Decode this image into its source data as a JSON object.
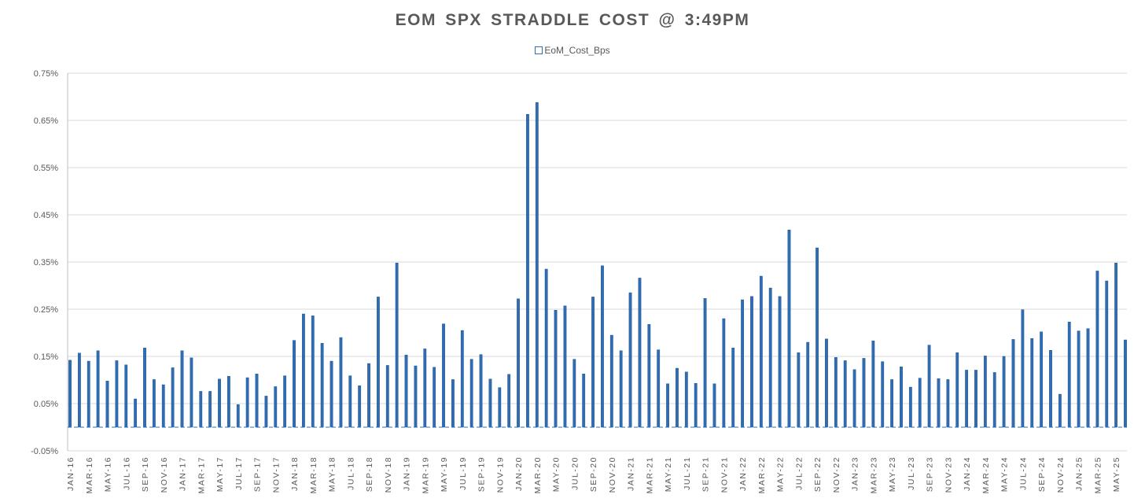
{
  "chart_data": {
    "type": "bar",
    "title": "EOM SPX STRADDLE COST @ 3:49PM",
    "legend": [
      "EoM_Cost_Bps"
    ],
    "legend_position": "top",
    "xlabel": "",
    "ylabel": "",
    "ylim": [
      -0.05,
      0.75
    ],
    "y_ticks": [
      "-0.05%",
      "0.05%",
      "0.15%",
      "0.25%",
      "0.35%",
      "0.45%",
      "0.55%",
      "0.65%",
      "0.75%"
    ],
    "y_tick_values": [
      -0.05,
      0.05,
      0.15,
      0.25,
      0.35,
      0.45,
      0.55,
      0.65,
      0.75
    ],
    "grid": true,
    "colors": {
      "bar": "#2E6DB4",
      "bar_edge": "#1F4E8C",
      "grid": "#D9D9D9",
      "axis_text": "#595959"
    },
    "categories": [
      "JAN-16",
      "FEB-16",
      "MAR-16",
      "APR-16",
      "MAY-16",
      "JUN-16",
      "JUL-16",
      "AUG-16",
      "SEP-16",
      "OCT-16",
      "NOV-16",
      "DEC-16",
      "JAN-17",
      "FEB-17",
      "MAR-17",
      "APR-17",
      "MAY-17",
      "JUN-17",
      "JUL-17",
      "AUG-17",
      "SEP-17",
      "OCT-17",
      "NOV-17",
      "DEC-17",
      "JAN-18",
      "FEB-18",
      "MAR-18",
      "APR-18",
      "MAY-18",
      "JUN-18",
      "JUL-18",
      "AUG-18",
      "SEP-18",
      "OCT-18",
      "NOV-18",
      "DEC-18",
      "JAN-19",
      "FEB-19",
      "MAR-19",
      "APR-19",
      "MAY-19",
      "JUN-19",
      "JUL-19",
      "AUG-19",
      "SEP-19",
      "OCT-19",
      "NOV-19",
      "DEC-19",
      "JAN-20",
      "FEB-20",
      "MAR-20",
      "APR-20",
      "MAY-20",
      "JUN-20",
      "JUL-20",
      "AUG-20",
      "SEP-20",
      "OCT-20",
      "NOV-20",
      "DEC-20",
      "JAN-21",
      "FEB-21",
      "MAR-21",
      "APR-21",
      "MAY-21",
      "JUN-21",
      "JUL-21",
      "AUG-21",
      "SEP-21",
      "OCT-21",
      "NOV-21",
      "DEC-21",
      "JAN-22",
      "FEB-22",
      "MAR-22",
      "APR-22",
      "MAY-22",
      "JUN-22",
      "JUL-22",
      "AUG-22",
      "SEP-22",
      "OCT-22",
      "NOV-22",
      "DEC-22",
      "JAN-23",
      "FEB-23",
      "MAR-23",
      "APR-23",
      "MAY-23",
      "JUN-23",
      "JUL-23",
      "AUG-23",
      "SEP-23",
      "OCT-23",
      "NOV-23",
      "DEC-23",
      "JAN-24",
      "FEB-24",
      "MAR-24",
      "APR-24",
      "MAY-24",
      "JUN-24",
      "JUL-24",
      "AUG-24",
      "SEP-24",
      "OCT-24",
      "NOV-24",
      "DEC-24",
      "JAN-25",
      "FEB-25",
      "MAR-25",
      "APR-25",
      "MAY-25",
      "JUN-25"
    ],
    "x_tick_labels": [
      "JAN-16",
      "MAR-16",
      "MAY-16",
      "JUL-16",
      "SEP-16",
      "NOV-16",
      "JAN-17",
      "MAR-17",
      "MAY-17",
      "JUL-17",
      "SEP-17",
      "NOV-17",
      "JAN-18",
      "MAR-18",
      "MAY-18",
      "JUL-18",
      "SEP-18",
      "NOV-18",
      "JAN-19",
      "MAR-19",
      "MAY-19",
      "JUL-19",
      "SEP-19",
      "NOV-19",
      "JAN-20",
      "MAR-20",
      "MAY-20",
      "JUL-20",
      "SEP-20",
      "NOV-20",
      "JAN-21",
      "MAR-21",
      "MAY-21",
      "JUL-21",
      "SEP-21",
      "NOV-21",
      "JAN-22",
      "MAR-22",
      "MAY-22",
      "JUL-22",
      "SEP-22",
      "NOV-22",
      "JAN-23",
      "MAR-23",
      "MAY-23",
      "JUL-23",
      "SEP-23",
      "NOV-23",
      "JAN-24",
      "MAR-24",
      "MAY-24",
      "JUL-24",
      "SEP-24",
      "NOV-24",
      "JAN-25",
      "MAR-25",
      "MAY-25"
    ],
    "series": [
      {
        "name": "EoM_Cost_Bps",
        "values": [
          0.142,
          0.157,
          0.14,
          0.162,
          0.098,
          0.141,
          0.132,
          0.06,
          0.168,
          0.101,
          0.09,
          0.126,
          0.162,
          0.147,
          0.076,
          0.076,
          0.102,
          0.108,
          0.048,
          0.105,
          0.113,
          0.066,
          0.086,
          0.109,
          0.184,
          0.24,
          0.236,
          0.178,
          0.14,
          0.19,
          0.109,
          0.088,
          0.135,
          0.276,
          0.131,
          0.348,
          0.153,
          0.13,
          0.166,
          0.127,
          0.219,
          0.101,
          0.205,
          0.144,
          0.154,
          0.102,
          0.084,
          0.112,
          0.272,
          0.663,
          0.688,
          0.335,
          0.248,
          0.257,
          0.144,
          0.113,
          0.276,
          0.342,
          0.195,
          0.162,
          0.285,
          0.316,
          0.218,
          0.164,
          0.092,
          0.125,
          0.117,
          0.093,
          0.273,
          0.092,
          0.23,
          0.168,
          0.27,
          0.277,
          0.32,
          0.295,
          0.277,
          0.418,
          0.158,
          0.18,
          0.38,
          0.187,
          0.148,
          0.141,
          0.122,
          0.146,
          0.183,
          0.139,
          0.101,
          0.128,
          0.085,
          0.104,
          0.174,
          0.103,
          0.101,
          0.158,
          0.121,
          0.121,
          0.151,
          0.116,
          0.15,
          0.186,
          0.249,
          0.188,
          0.202,
          0.163,
          0.07,
          0.223,
          0.204,
          0.209,
          0.331,
          0.31,
          0.348,
          0.185
        ]
      }
    ]
  }
}
